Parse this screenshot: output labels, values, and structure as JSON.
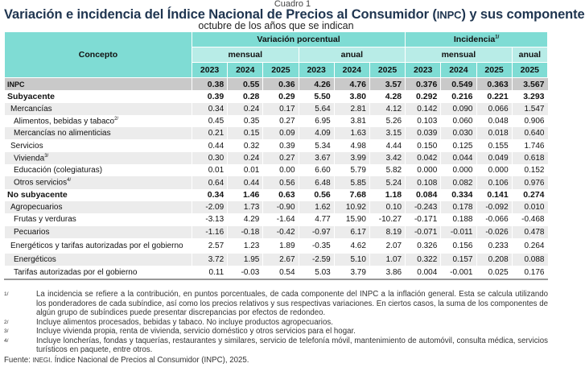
{
  "cuadro": "Cuadro 1",
  "title": {
    "pre": "Variación e incidencia del Índice Nacional de Precios al Consumidor (",
    "abbr": "INPC",
    "post": ") y sus componentes"
  },
  "subtitle": "octubre de los años que se indican",
  "header": {
    "concepto": "Concepto",
    "variacion": "Variación porcentual",
    "incidencia": "Incidencia",
    "incidencia_sup": "1/",
    "mensual": "mensual",
    "anual": "anual",
    "years": [
      "2023",
      "2024",
      "2025",
      "2023",
      "2024",
      "2025",
      "2023",
      "2024",
      "2025",
      "2025"
    ]
  },
  "rows": [
    {
      "label": "INPC",
      "style": "inpc",
      "indent": 0,
      "values": [
        "0.38",
        "0.55",
        "0.36",
        "4.26",
        "4.76",
        "3.57",
        "0.376",
        "0.549",
        "0.363",
        "3.567"
      ]
    },
    {
      "label": "Subyacente",
      "style": "b",
      "indent": 0,
      "values": [
        "0.39",
        "0.28",
        "0.29",
        "5.50",
        "3.80",
        "4.28",
        "0.292",
        "0.216",
        "0.221",
        "3.293"
      ]
    },
    {
      "label": "Mercancías",
      "style": "s",
      "indent": 1,
      "values": [
        "0.34",
        "0.24",
        "0.17",
        "5.64",
        "2.81",
        "4.12",
        "0.142",
        "0.090",
        "0.066",
        "1.547"
      ]
    },
    {
      "label": "Alimentos, bebidas y tabaco",
      "sup": "2/",
      "style": "",
      "indent": 2,
      "values": [
        "0.45",
        "0.35",
        "0.27",
        "6.95",
        "3.81",
        "5.26",
        "0.103",
        "0.060",
        "0.048",
        "0.906"
      ]
    },
    {
      "label": "Mercancías no alimenticias",
      "style": "s",
      "indent": 2,
      "values": [
        "0.21",
        "0.15",
        "0.09",
        "4.09",
        "1.63",
        "3.15",
        "0.039",
        "0.030",
        "0.018",
        "0.640"
      ]
    },
    {
      "label": "Servicios",
      "style": "",
      "indent": 1,
      "values": [
        "0.44",
        "0.32",
        "0.39",
        "5.34",
        "4.98",
        "4.44",
        "0.150",
        "0.125",
        "0.155",
        "1.746"
      ]
    },
    {
      "label": "Vivienda",
      "sup": "3/",
      "style": "s",
      "indent": 2,
      "values": [
        "0.30",
        "0.24",
        "0.27",
        "3.67",
        "3.99",
        "3.42",
        "0.042",
        "0.044",
        "0.049",
        "0.618"
      ]
    },
    {
      "label": "Educación (colegiaturas)",
      "style": "",
      "indent": 2,
      "values": [
        "0.01",
        "0.01",
        "0.00",
        "6.60",
        "5.79",
        "5.82",
        "0.000",
        "0.000",
        "0.000",
        "0.152"
      ]
    },
    {
      "label": "Otros servicios",
      "sup": "4/",
      "style": "s",
      "indent": 2,
      "values": [
        "0.64",
        "0.44",
        "0.56",
        "6.48",
        "5.85",
        "5.24",
        "0.108",
        "0.082",
        "0.106",
        "0.976"
      ]
    },
    {
      "label": "No subyacente",
      "style": "b",
      "indent": 0,
      "values": [
        "0.34",
        "1.46",
        "0.63",
        "0.56",
        "7.68",
        "1.18",
        "0.084",
        "0.334",
        "0.141",
        "0.274"
      ]
    },
    {
      "label": "Agropecuarios",
      "style": "s",
      "indent": 1,
      "values": [
        "-2.09",
        "1.73",
        "-0.90",
        "1.62",
        "10.92",
        "0.10",
        "-0.243",
        "0.178",
        "-0.092",
        "0.010"
      ]
    },
    {
      "label": "Frutas y verduras",
      "style": "",
      "indent": 2,
      "values": [
        "-3.13",
        "4.29",
        "-1.64",
        "4.77",
        "15.90",
        "-10.27",
        "-0.171",
        "0.188",
        "-0.066",
        "-0.468"
      ]
    },
    {
      "label": "Pecuarios",
      "style": "s",
      "indent": 2,
      "values": [
        "-1.16",
        "-0.18",
        "-0.42",
        "-0.97",
        "6.17",
        "8.19",
        "-0.071",
        "-0.011",
        "-0.026",
        "0.478"
      ]
    },
    {
      "label": "Energéticos y tarifas autorizadas por el gobierno",
      "style": "",
      "indent": 1,
      "values": [
        "2.57",
        "1.23",
        "1.89",
        "-0.35",
        "4.62",
        "2.07",
        "0.326",
        "0.156",
        "0.233",
        "0.264"
      ]
    },
    {
      "label": "Energéticos",
      "style": "s",
      "indent": 2,
      "values": [
        "3.72",
        "1.95",
        "2.67",
        "-2.59",
        "5.10",
        "1.07",
        "0.322",
        "0.157",
        "0.208",
        "0.088"
      ]
    },
    {
      "label": "Tarifas autorizadas por el gobierno",
      "style": "",
      "indent": 2,
      "values": [
        "0.11",
        "-0.03",
        "0.54",
        "5.03",
        "3.79",
        "3.86",
        "0.004",
        "-0.001",
        "0.025",
        "0.176"
      ]
    }
  ],
  "notes": [
    {
      "n": "1/",
      "text": "La incidencia se refiere a la contribución, en puntos porcentuales, de cada componente del INPC a la inflación general. Esta se calcula utilizando los ponderadores de cada subíndice, así como los precios relativos y sus respectivas variaciones. En ciertos casos, la suma de los componentes de algún grupo de subíndices puede presentar discrepancias por efectos de redondeo."
    },
    {
      "n": "2/",
      "text": "Incluye alimentos procesados, bebidas y tabaco. No incluye productos agropecuarios."
    },
    {
      "n": "3/",
      "text": "Incluye vivienda propia, renta de vivienda, servicio doméstico y otros servicios para el hogar."
    },
    {
      "n": "4/",
      "text": "Incluye loncherías, fondas y taquerías, restaurantes y similares, servicio de telefonía móvil, mantenimiento de automóvil, consulta médica, servicios turísticos en paquete, entre otros."
    }
  ],
  "source": {
    "label": "Fuente:",
    "org": "INEGI",
    "text": ". Índice Nacional de Precios al Consumidor (INPC), 2025."
  }
}
